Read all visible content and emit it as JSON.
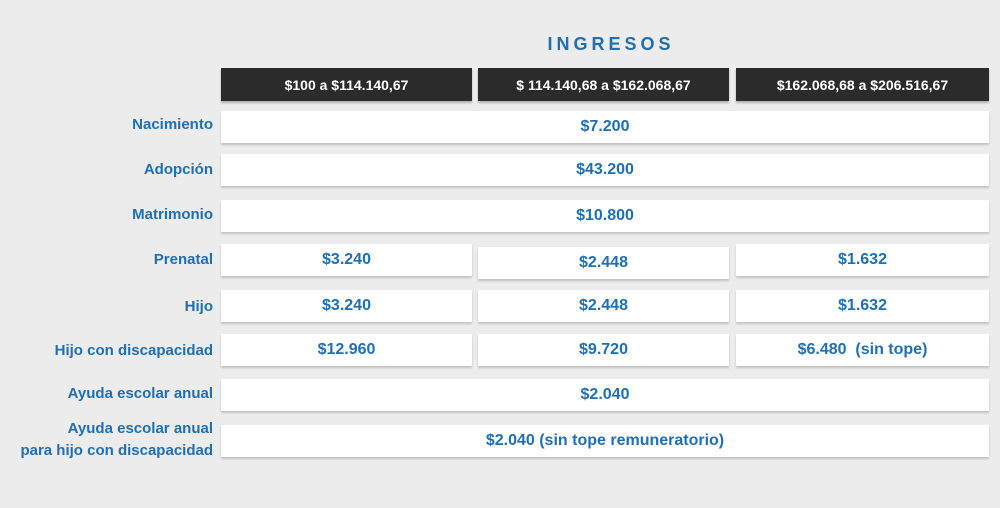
{
  "title": "INGRESOS",
  "headers": [
    "$100 a $114.140,67",
    "$ 114.140,68 a $162.068,67",
    "$162.068,68 a $206.516,67"
  ],
  "rows": [
    {
      "label": "Nacimiento",
      "value": "$7.200"
    },
    {
      "label": "Adopción",
      "value": "$43.200"
    },
    {
      "label": "Matrimonio",
      "value": "$10.800"
    },
    {
      "label": "Prenatal",
      "values": [
        "$3.240",
        "$2.448",
        "$1.632"
      ]
    },
    {
      "label": "Hijo",
      "values": [
        "$3.240",
        "$2.448",
        "$1.632"
      ]
    },
    {
      "label": "Hijo con discapacidad",
      "values": [
        "$12.960",
        "$9.720",
        "$6.480  (sin tope)"
      ]
    },
    {
      "label": "Ayuda escolar anual",
      "value": "$2.040"
    },
    {
      "label_line1": "Ayuda escolar anual",
      "label_line2": "para hijo con discapacidad",
      "value": "$2.040 (sin tope remuneratorio)"
    }
  ]
}
